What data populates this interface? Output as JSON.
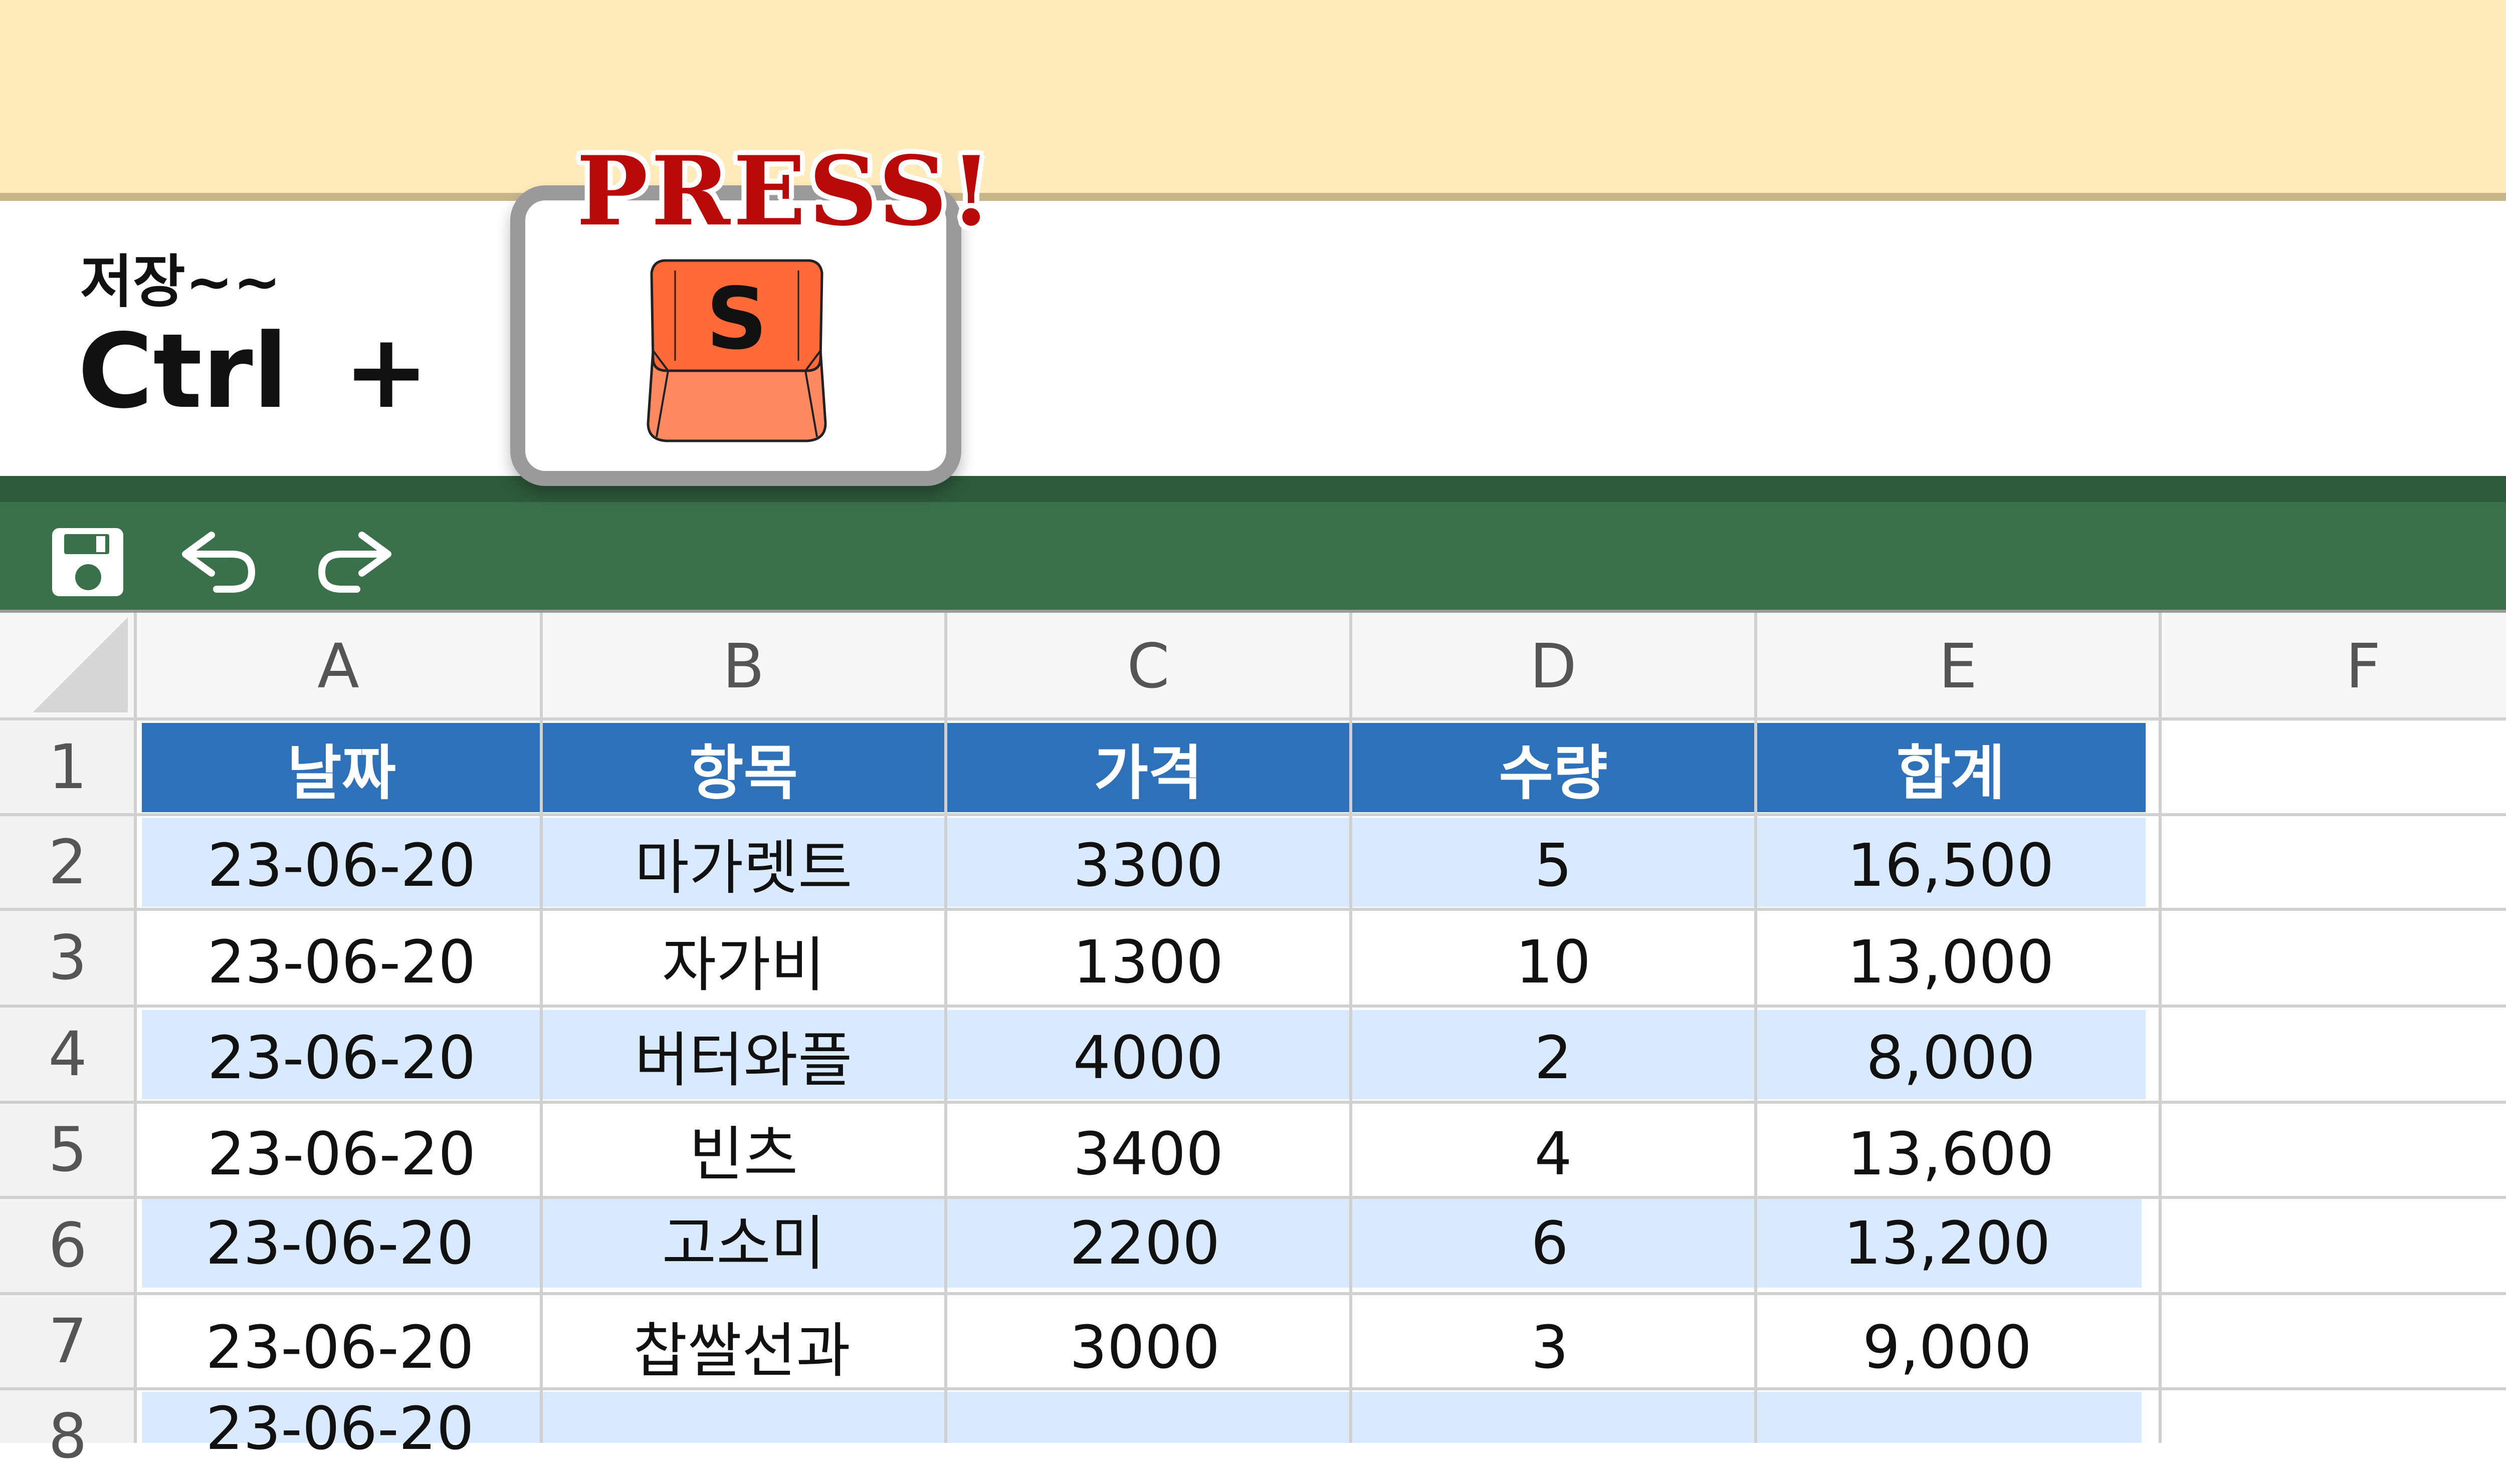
{
  "hint": {
    "caption": "저장~~",
    "modifier": "Ctrl",
    "plus": "+",
    "press_label": "PRESS!",
    "key": "S"
  },
  "toolbar": {
    "icons": [
      "save-icon",
      "undo-icon",
      "redo-icon"
    ]
  },
  "sheet": {
    "columns": [
      "A",
      "B",
      "C",
      "D",
      "E",
      "F"
    ],
    "row_numbers": [
      "1",
      "2",
      "3",
      "4",
      "5",
      "6",
      "7",
      "8"
    ],
    "header": [
      "날짜",
      "항목",
      "가격",
      "수량",
      "합계"
    ],
    "rows": [
      [
        "23-06-20",
        "마가렛트",
        "3300",
        "5",
        "16,500"
      ],
      [
        "23-06-20",
        "자가비",
        "1300",
        "10",
        "13,000"
      ],
      [
        "23-06-20",
        "버터와플",
        "4000",
        "2",
        "8,000"
      ],
      [
        "23-06-20",
        "빈츠",
        "3400",
        "4",
        "13,600"
      ],
      [
        "23-06-20",
        "고소미",
        "2200",
        "6",
        "13,200"
      ],
      [
        "23-06-20",
        "찹쌀선과",
        "3000",
        "3",
        "9,000"
      ],
      [
        "23-06-20",
        "",
        "",
        "",
        ""
      ]
    ]
  },
  "colors": {
    "accent_green": "#3a704a",
    "header_blue": "#2e71b8",
    "row_stripe": "#d9eaff",
    "press_red": "#b90a0a",
    "key_orange": "#ff7b4d"
  }
}
